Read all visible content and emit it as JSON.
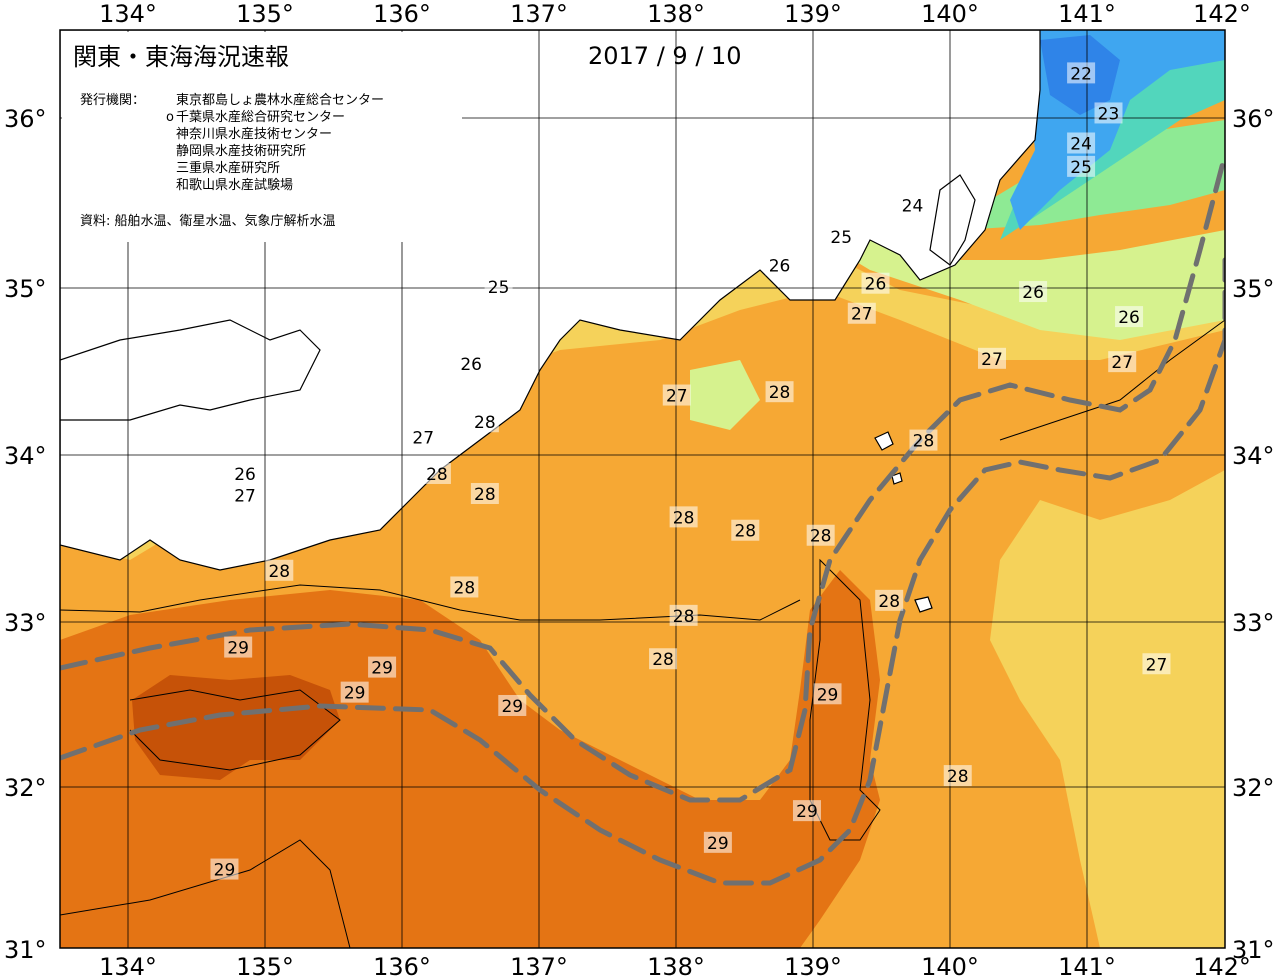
{
  "header": {
    "title": "関東・東海海況速報",
    "date": "2017 / 9 / 10",
    "issuer_label": "発行機関：",
    "issuers": [
      "東京都島しょ農林水産総合センター",
      "千葉県水産総合研究センター",
      "神奈川県水産技術センター",
      "静岡県水産技術研究所",
      "三重県水産研究所",
      "和歌山県水産試験場"
    ],
    "issuer_marker": "o",
    "source": "資料: 船舶水温、衛星水温、気象庁解析水温"
  },
  "axes": {
    "lon_labels": [
      "134°",
      "135°",
      "136°",
      "137°",
      "138°",
      "139°",
      "140°",
      "141°",
      "142°"
    ],
    "lat_labels": [
      "36°",
      "35°",
      "34°",
      "33°",
      "32°",
      "31°"
    ],
    "lon_range": [
      133.5,
      142.0
    ],
    "lat_range": [
      31.0,
      36.5
    ]
  },
  "colors": {
    "sea_warm_29plus": "#c65208",
    "sea_29": "#e47414",
    "sea_28": "#f6a834",
    "sea_27": "#f5d25a",
    "sea_26": "#d6f28e",
    "sea_25": "#8eea94",
    "sea_24": "#52d6bc",
    "sea_23": "#3fa6f0",
    "sea_22": "#2f84e8",
    "land": "#ffffff",
    "kuroshio_axis": "#707070"
  },
  "isotherm_labels": [
    {
      "text": "22",
      "lon": 140.95,
      "lat": 36.24
    },
    {
      "text": "23",
      "lon": 141.15,
      "lat": 36.0
    },
    {
      "text": "24",
      "lon": 140.95,
      "lat": 35.82
    },
    {
      "text": "25",
      "lon": 140.95,
      "lat": 35.68
    },
    {
      "text": "24",
      "lon": 139.72,
      "lat": 35.45
    },
    {
      "text": "25",
      "lon": 139.2,
      "lat": 35.26
    },
    {
      "text": "26",
      "lon": 138.75,
      "lat": 35.09
    },
    {
      "text": "26",
      "lon": 139.45,
      "lat": 34.98
    },
    {
      "text": "26",
      "lon": 140.6,
      "lat": 34.93
    },
    {
      "text": "27",
      "lon": 139.35,
      "lat": 34.8
    },
    {
      "text": "26",
      "lon": 141.3,
      "lat": 34.78
    },
    {
      "text": "25",
      "lon": 136.7,
      "lat": 34.96
    },
    {
      "text": "26",
      "lon": 136.5,
      "lat": 34.5
    },
    {
      "text": "27",
      "lon": 140.3,
      "lat": 34.53
    },
    {
      "text": "27",
      "lon": 141.25,
      "lat": 34.51
    },
    {
      "text": "27",
      "lon": 138.0,
      "lat": 34.31
    },
    {
      "text": "28",
      "lon": 138.75,
      "lat": 34.33
    },
    {
      "text": "28",
      "lon": 136.6,
      "lat": 34.15
    },
    {
      "text": "27",
      "lon": 136.15,
      "lat": 34.06
    },
    {
      "text": "28",
      "lon": 139.8,
      "lat": 34.04
    },
    {
      "text": "26",
      "lon": 134.85,
      "lat": 33.84
    },
    {
      "text": "28",
      "lon": 136.25,
      "lat": 33.84
    },
    {
      "text": "27",
      "lon": 134.85,
      "lat": 33.71
    },
    {
      "text": "28",
      "lon": 136.6,
      "lat": 33.72
    },
    {
      "text": "28",
      "lon": 138.05,
      "lat": 33.58
    },
    {
      "text": "28",
      "lon": 138.5,
      "lat": 33.5
    },
    {
      "text": "28",
      "lon": 139.05,
      "lat": 33.47
    },
    {
      "text": "28",
      "lon": 135.1,
      "lat": 33.26
    },
    {
      "text": "28",
      "lon": 136.45,
      "lat": 33.16
    },
    {
      "text": "28",
      "lon": 139.55,
      "lat": 33.08
    },
    {
      "text": "28",
      "lon": 138.05,
      "lat": 32.99
    },
    {
      "text": "29",
      "lon": 134.8,
      "lat": 32.8
    },
    {
      "text": "28",
      "lon": 137.9,
      "lat": 32.73
    },
    {
      "text": "27",
      "lon": 141.5,
      "lat": 32.7
    },
    {
      "text": "29",
      "lon": 135.85,
      "lat": 32.68
    },
    {
      "text": "29",
      "lon": 135.65,
      "lat": 32.53
    },
    {
      "text": "29",
      "lon": 139.1,
      "lat": 32.52
    },
    {
      "text": "29",
      "lon": 136.8,
      "lat": 32.45
    },
    {
      "text": "28",
      "lon": 140.05,
      "lat": 32.03
    },
    {
      "text": "29",
      "lon": 138.95,
      "lat": 31.82
    },
    {
      "text": "29",
      "lon": 138.3,
      "lat": 31.63
    },
    {
      "text": "29",
      "lon": 134.7,
      "lat": 31.47
    }
  ]
}
